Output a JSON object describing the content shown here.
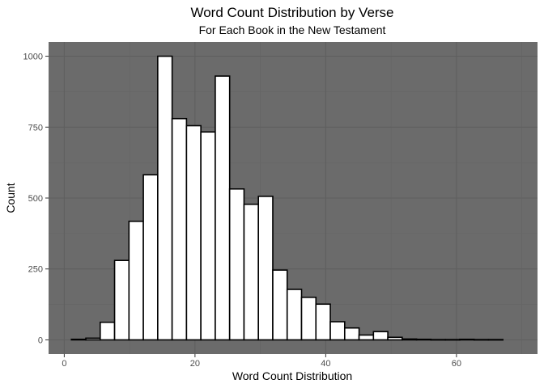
{
  "chart_data": {
    "type": "bar",
    "title": "Word Count Distribution by Verse",
    "subtitle": "For Each Book in the New Testament",
    "xlabel": "Word Count Distribution",
    "ylabel": "Count",
    "xlim": [
      -2.4,
      72.4
    ],
    "ylim": [
      -50,
      1050
    ],
    "x_ticks": [
      0,
      20,
      40,
      60
    ],
    "y_ticks": [
      0,
      250,
      500,
      750,
      1000
    ],
    "bin_width": 2.2,
    "bins": [
      {
        "x0": 1.1,
        "x1": 3.3,
        "count": 2
      },
      {
        "x0": 3.3,
        "x1": 5.5,
        "count": 6
      },
      {
        "x0": 5.5,
        "x1": 7.7,
        "count": 62
      },
      {
        "x0": 7.7,
        "x1": 9.9,
        "count": 280
      },
      {
        "x0": 9.9,
        "x1": 12.1,
        "count": 418
      },
      {
        "x0": 12.1,
        "x1": 14.3,
        "count": 582
      },
      {
        "x0": 14.3,
        "x1": 16.5,
        "count": 1000
      },
      {
        "x0": 16.5,
        "x1": 18.7,
        "count": 780
      },
      {
        "x0": 18.7,
        "x1": 20.9,
        "count": 755
      },
      {
        "x0": 20.9,
        "x1": 23.1,
        "count": 733
      },
      {
        "x0": 23.1,
        "x1": 25.3,
        "count": 930
      },
      {
        "x0": 25.3,
        "x1": 27.5,
        "count": 532
      },
      {
        "x0": 27.5,
        "x1": 29.7,
        "count": 478
      },
      {
        "x0": 29.7,
        "x1": 31.9,
        "count": 506
      },
      {
        "x0": 31.9,
        "x1": 34.1,
        "count": 246
      },
      {
        "x0": 34.1,
        "x1": 36.3,
        "count": 178
      },
      {
        "x0": 36.3,
        "x1": 38.5,
        "count": 150
      },
      {
        "x0": 38.5,
        "x1": 40.7,
        "count": 126
      },
      {
        "x0": 40.7,
        "x1": 42.9,
        "count": 64
      },
      {
        "x0": 42.9,
        "x1": 45.1,
        "count": 42
      },
      {
        "x0": 45.1,
        "x1": 47.3,
        "count": 17
      },
      {
        "x0": 47.3,
        "x1": 49.5,
        "count": 29
      },
      {
        "x0": 49.5,
        "x1": 51.7,
        "count": 9
      },
      {
        "x0": 51.7,
        "x1": 53.9,
        "count": 3
      },
      {
        "x0": 53.9,
        "x1": 56.1,
        "count": 2
      },
      {
        "x0": 56.1,
        "x1": 58.3,
        "count": 1
      },
      {
        "x0": 58.3,
        "x1": 60.5,
        "count": 1
      },
      {
        "x0": 60.5,
        "x1": 62.7,
        "count": 2
      },
      {
        "x0": 62.7,
        "x1": 64.9,
        "count": 1
      },
      {
        "x0": 64.9,
        "x1": 67.1,
        "count": 1
      }
    ],
    "grid": true,
    "legend": "none",
    "colors": {
      "panel_background": "#6b6b6b",
      "grid_major": "#5f5f5f",
      "grid_minor": "#656565",
      "bar_fill": "#ffffff",
      "bar_outline": "#000000"
    }
  }
}
